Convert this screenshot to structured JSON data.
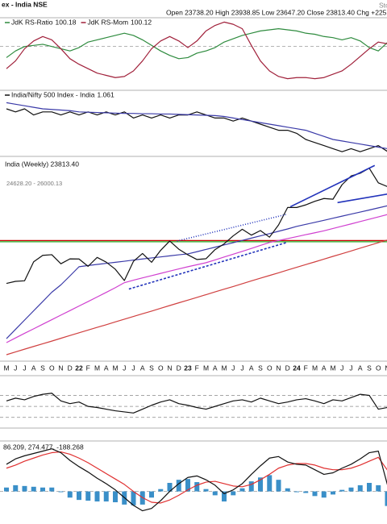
{
  "header": {
    "title": "ex - India NSE",
    "quote": "Open 23738.20 High 23938.85 Low 23647.20 Close 23813.40 Chg +225.",
    "watermark": "Sto"
  },
  "chart_data": [
    {
      "type": "line",
      "ylim": [
        98.1,
        101.15
      ],
      "guides": [
        100
      ],
      "series": [
        {
          "name": "JdK RS-Ratio",
          "color": "#2e8b3e",
          "values": [
            99.5,
            99.8,
            100.0,
            100.05,
            100.1,
            100.0,
            99.9,
            99.8,
            99.95,
            100.2,
            100.3,
            100.4,
            100.5,
            100.6,
            100.5,
            100.3,
            100.05,
            99.8,
            99.6,
            99.45,
            99.5,
            99.7,
            99.8,
            99.95,
            100.2,
            100.35,
            100.5,
            100.6,
            100.7,
            100.75,
            100.8,
            100.75,
            100.7,
            100.6,
            100.55,
            100.45,
            100.4,
            100.3,
            100.4,
            100.25,
            99.95,
            99.8,
            100.18
          ]
        },
        {
          "name": "JdK RS-Mom",
          "color": "#a0203a",
          "values": [
            99.0,
            99.35,
            99.9,
            100.25,
            100.45,
            100.3,
            99.9,
            99.45,
            99.2,
            99.0,
            98.8,
            98.7,
            98.6,
            98.65,
            98.9,
            99.35,
            99.9,
            100.25,
            100.45,
            100.25,
            99.95,
            100.25,
            100.7,
            100.95,
            101.1,
            101.0,
            100.8,
            100.05,
            99.35,
            98.9,
            98.65,
            98.55,
            98.6,
            98.6,
            98.55,
            98.6,
            98.75,
            98.9,
            99.2,
            99.55,
            99.9,
            100.2,
            100.12
          ]
        }
      ]
    },
    {
      "type": "line",
      "ylim": [
        1.05,
        1.25
      ],
      "series": [
        {
          "name": "India/Nifty 500 Index - India",
          "color": "#111111",
          "values": [
            1.2,
            1.19,
            1.2,
            1.18,
            1.19,
            1.19,
            1.18,
            1.19,
            1.18,
            1.19,
            1.18,
            1.19,
            1.18,
            1.19,
            1.17,
            1.18,
            1.17,
            1.18,
            1.17,
            1.18,
            1.18,
            1.19,
            1.18,
            1.17,
            1.17,
            1.16,
            1.17,
            1.16,
            1.15,
            1.14,
            1.13,
            1.13,
            1.12,
            1.1,
            1.09,
            1.08,
            1.07,
            1.06,
            1.07,
            1.06,
            1.07,
            1.08,
            1.061
          ]
        },
        {
          "color": "#3a3aa8",
          "values": [
            1.22,
            1.215,
            1.21,
            1.205,
            1.2,
            1.198,
            1.196,
            1.194,
            1.19,
            1.189,
            1.188,
            1.187,
            1.186,
            1.185,
            1.185,
            1.184,
            1.184,
            1.183,
            1.183,
            1.182,
            1.181,
            1.18,
            1.179,
            1.178,
            1.175,
            1.17,
            1.165,
            1.16,
            1.155,
            1.15,
            1.145,
            1.14,
            1.135,
            1.13,
            1.12,
            1.11,
            1.1,
            1.095,
            1.09,
            1.085,
            1.08,
            1.075,
            1.07
          ]
        }
      ]
    },
    {
      "type": "line",
      "log": true,
      "title": "India (Weekly) 23813.40",
      "subtitle": "24628.20 - 26000.13",
      "ylim": [
        11200,
        26800
      ],
      "categories": [
        "M",
        "J",
        "J",
        "A",
        "S",
        "O",
        "N",
        "D",
        "22",
        "F",
        "M",
        "A",
        "M",
        "J",
        "J",
        "A",
        "S",
        "O",
        "N",
        "D",
        "23",
        "F",
        "M",
        "A",
        "M",
        "J",
        "J",
        "A",
        "S",
        "O",
        "N",
        "D",
        "24",
        "F",
        "M",
        "A",
        "M",
        "J",
        "J",
        "A",
        "S",
        "O",
        "N"
      ],
      "reference_lines": [
        {
          "value": 18800,
          "color": "#cc0000"
        },
        {
          "value": 18700,
          "color": "#22aa22"
        }
      ],
      "trendlines": [
        {
          "color": "#2233bb",
          "dash": "3,2",
          "points": [
            [
              13.5,
              15200
            ],
            [
              30.9,
              18640
            ]
          ]
        },
        {
          "color": "#2233bb",
          "dash": "1,2",
          "points": [
            [
              18.8,
              18760
            ],
            [
              30.8,
              21070
            ]
          ]
        },
        {
          "color": "#2233bb",
          "dash": "",
          "points": [
            [
              31.3,
              21800
            ],
            [
              40.6,
              26120
            ]
          ]
        },
        {
          "color": "#2233bb",
          "dash": "",
          "points": [
            [
              36.5,
              22200
            ],
            [
              42,
              23050
            ]
          ]
        }
      ],
      "series": [
        {
          "color": "#d04040",
          "values": [
            11400,
            11540,
            11680,
            11820,
            11960,
            12100,
            12250,
            12400,
            12550,
            12700,
            12850,
            13000,
            13160,
            13320,
            13480,
            13640,
            13800,
            13970,
            14140,
            14310,
            14480,
            14650,
            14830,
            15010,
            15190,
            15370,
            15560,
            15750,
            15940,
            16130,
            16320,
            16520,
            16720,
            16920,
            17120,
            17330,
            17540,
            17750,
            17960,
            18180,
            18400,
            18620,
            18840
          ]
        },
        {
          "color": "#d040d0",
          "values": [
            12020,
            12270,
            12520,
            12770,
            13030,
            13290,
            13560,
            13830,
            14110,
            14390,
            14680,
            14980,
            15290,
            15630,
            15800,
            15960,
            16120,
            16280,
            16440,
            16600,
            16760,
            16910,
            17060,
            17270,
            17490,
            17710,
            17930,
            18160,
            18400,
            18640,
            18800,
            18960,
            19120,
            19290,
            19450,
            19620,
            19820,
            20020,
            20220,
            20430,
            20640,
            20850,
            21070
          ]
        },
        {
          "color": "#3a3aa8",
          "values": [
            12230,
            12740,
            13270,
            13820,
            14390,
            14990,
            15480,
            16100,
            16760,
            16850,
            16930,
            17010,
            17090,
            17170,
            17260,
            17340,
            17420,
            17500,
            17580,
            17660,
            17730,
            17900,
            18080,
            18260,
            18440,
            18620,
            18810,
            19000,
            19190,
            19380,
            19580,
            19780,
            20000,
            20180,
            20360,
            20540,
            20730,
            20920,
            21110,
            21300,
            21490,
            21690,
            21890
          ]
        },
        {
          "color": "#111111",
          "values": [
            15580,
            15720,
            15760,
            17130,
            17620,
            17670,
            16980,
            17350,
            17340,
            16790,
            17460,
            17100,
            16580,
            15780,
            17160,
            17760,
            17090,
            18010,
            18760,
            18100,
            17660,
            17300,
            17360,
            18070,
            18530,
            19190,
            19750,
            19250,
            19640,
            19080,
            20130,
            21730,
            21730,
            21980,
            22330,
            22600,
            22530,
            24010,
            24950,
            25240,
            25810,
            24210,
            23810
          ]
        }
      ]
    },
    {
      "type": "line",
      "ylim": [
        15,
        100
      ],
      "guides": [
        30,
        50,
        70
      ],
      "series": [
        {
          "color": "#111111",
          "values": [
            60,
            65,
            62,
            68,
            72,
            74,
            60,
            55,
            58,
            50,
            48,
            45,
            42,
            40,
            38,
            45,
            52,
            58,
            62,
            55,
            52,
            48,
            45,
            50,
            55,
            60,
            62,
            58,
            65,
            60,
            55,
            58,
            62,
            64,
            60,
            55,
            62,
            60,
            66,
            72,
            70,
            45,
            48
          ]
        }
      ]
    },
    {
      "type": "line",
      "label": "86.209, 274.477, -188.268",
      "ylim": [
        -400,
        620
      ],
      "guides": [
        0
      ],
      "series": [
        {
          "type": "bar",
          "color": "#3a8fc8",
          "values": [
            50,
            80,
            70,
            60,
            50,
            50,
            -10,
            -80,
            -110,
            -120,
            -130,
            -130,
            -140,
            -170,
            -180,
            -170,
            -80,
            30,
            110,
            150,
            160,
            120,
            30,
            -50,
            -130,
            -50,
            40,
            130,
            180,
            210,
            150,
            40,
            -10,
            -20,
            -60,
            -80,
            -40,
            20,
            50,
            80,
            110,
            80,
            -188.268
          ]
        },
        {
          "color": "#e03030",
          "values": [
            300,
            340,
            390,
            430,
            470,
            500,
            510,
            480,
            430,
            370,
            300,
            230,
            160,
            90,
            0,
            -80,
            -140,
            -150,
            -110,
            -50,
            20,
            80,
            120,
            130,
            100,
            70,
            60,
            90,
            150,
            220,
            300,
            340,
            360,
            360,
            340,
            300,
            280,
            280,
            300,
            340,
            390,
            440,
            274.477
          ]
        },
        {
          "color": "#111111",
          "values": [
            350,
            420,
            460,
            490,
            520,
            550,
            500,
            400,
            320,
            250,
            170,
            100,
            20,
            -80,
            -180,
            -250,
            -220,
            -120,
            0,
            100,
            180,
            200,
            150,
            80,
            -30,
            20,
            100,
            220,
            330,
            430,
            450,
            380,
            350,
            340,
            280,
            220,
            240,
            300,
            350,
            420,
            500,
            520,
            86.209
          ]
        }
      ]
    }
  ]
}
